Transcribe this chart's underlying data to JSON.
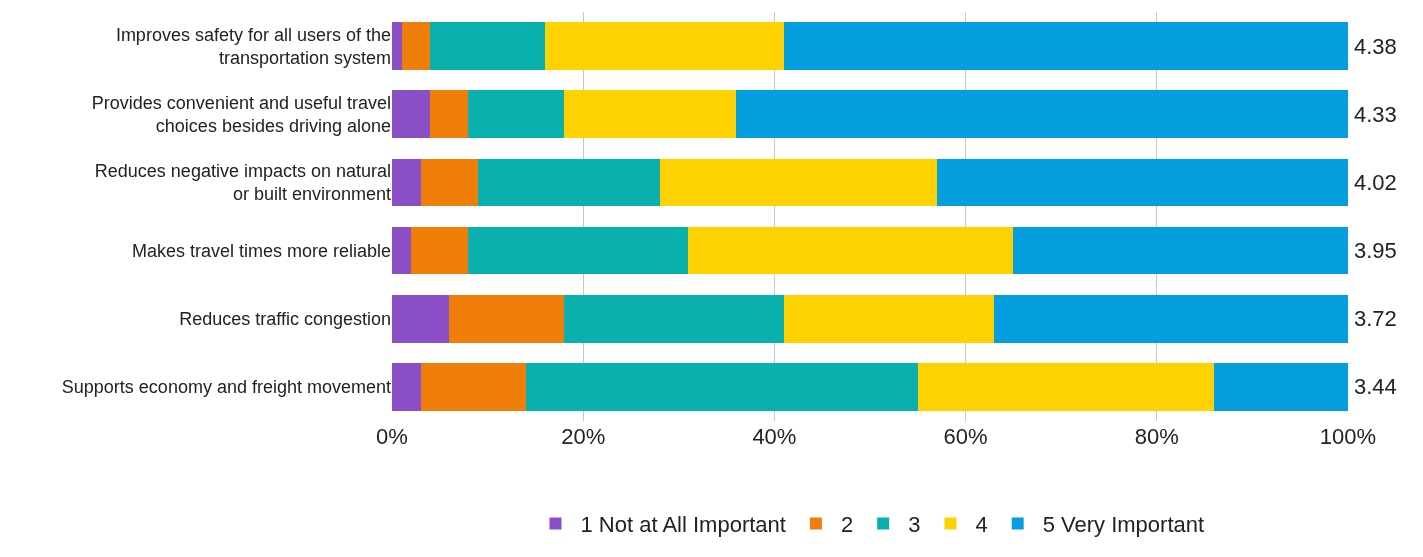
{
  "chart_data": {
    "type": "bar",
    "orientation": "horizontal",
    "stacked": true,
    "categories": [
      "Improves safety for all users of the transportation system",
      "Provides convenient and useful travel choices besides driving alone",
      "Reduces negative impacts on natural or built environment",
      "Makes travel times more reliable",
      "Reduces traffic congestion",
      "Supports economy and freight movement"
    ],
    "series": [
      {
        "name": "1 Not at All Important",
        "color": "#8a4fc6",
        "values": [
          1,
          4,
          3,
          2,
          6,
          3
        ]
      },
      {
        "name": "2",
        "color": "#f07f09",
        "values": [
          3,
          4,
          6,
          6,
          12,
          11
        ]
      },
      {
        "name": "3",
        "color": "#0ab0ad",
        "values": [
          12,
          10,
          19,
          23,
          23,
          41
        ]
      },
      {
        "name": "4",
        "color": "#fed200",
        "values": [
          25,
          18,
          29,
          34,
          22,
          31
        ]
      },
      {
        "name": "5 Very Important",
        "color": "#059fe0",
        "values": [
          59,
          64,
          43,
          35,
          37,
          14
        ]
      }
    ],
    "xlim": [
      0,
      100
    ],
    "xticks": [
      {
        "value": 0,
        "label": "0%"
      },
      {
        "value": 20,
        "label": "20%"
      },
      {
        "value": 40,
        "label": "40%"
      },
      {
        "value": 60,
        "label": "60%"
      },
      {
        "value": 80,
        "label": "80%"
      },
      {
        "value": 100,
        "label": "100%"
      }
    ],
    "annotations": [
      "4.38",
      "4.33",
      "4.02",
      "3.95",
      "3.72",
      "3.44"
    ],
    "grid": "x",
    "legend": "bottom"
  }
}
